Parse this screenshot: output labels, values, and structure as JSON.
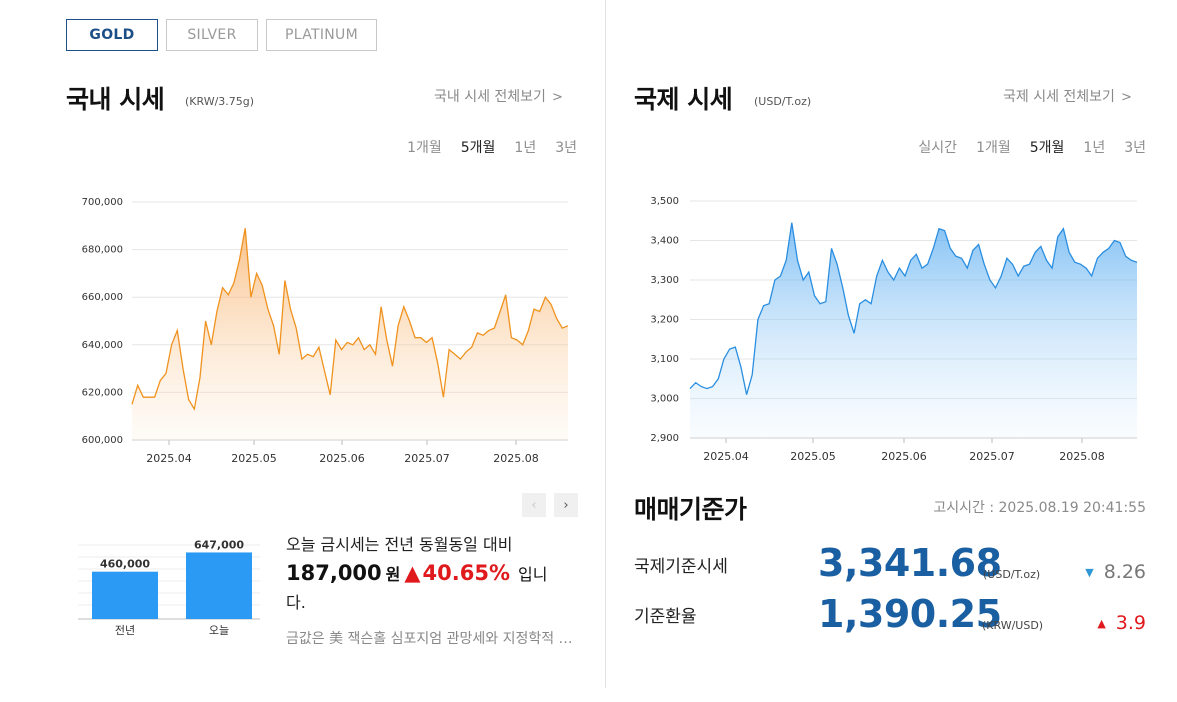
{
  "metal_tabs": [
    "GOLD",
    "SILVER",
    "PLATINUM"
  ],
  "domestic": {
    "title": "국내 시세",
    "unit": "(KRW/3.75g)",
    "view_all": "국내 시세 전체보기",
    "periods": [
      "1개월",
      "5개월",
      "1년",
      "3년"
    ],
    "selected_period": "5개월"
  },
  "international": {
    "title": "국제 시세",
    "unit": "(USD/T.oz)",
    "view_all": "국제 시세 전체보기",
    "periods": [
      "실시간",
      "1개월",
      "5개월",
      "1년",
      "3년"
    ],
    "selected_period": "5개월"
  },
  "colors": {
    "accent_blue": "#195fa1",
    "domestic_line": "#f0921e",
    "international_line": "#2a8ee0",
    "up_red": "#e0191c",
    "down_blue": "#2f97d6"
  },
  "chart_data": [
    {
      "type": "area",
      "name": "domestic",
      "x_ticks": [
        "2025.04",
        "2025.05",
        "2025.06",
        "2025.07",
        "2025.08"
      ],
      "y_ticks": [
        "700,000",
        "680,000",
        "660,000",
        "640,000",
        "620,000",
        "600,000"
      ],
      "ylim": [
        600000,
        700000
      ],
      "values": [
        615000,
        623000,
        618000,
        618000,
        618000,
        625000,
        628000,
        640000,
        646000,
        630000,
        617000,
        613000,
        626000,
        650000,
        640000,
        654000,
        664000,
        661000,
        666000,
        676000,
        689000,
        660000,
        670000,
        665000,
        655000,
        648000,
        636000,
        667000,
        655000,
        647000,
        634000,
        636000,
        635000,
        639000,
        629000,
        619000,
        642000,
        638000,
        641000,
        640000,
        643000,
        638000,
        640000,
        636000,
        656000,
        642000,
        631000,
        648000,
        656000,
        650000,
        643000,
        643000,
        641000,
        643000,
        632000,
        618000,
        638000,
        636000,
        634000,
        637000,
        639000,
        645000,
        644000,
        646000,
        647000,
        654000,
        661000,
        643000,
        642000,
        640000,
        646000,
        655000,
        654000,
        660000,
        657000,
        651000,
        647000,
        648000
      ],
      "grid": true
    },
    {
      "type": "area",
      "name": "international",
      "x_ticks": [
        "2025.04",
        "2025.05",
        "2025.06",
        "2025.07",
        "2025.08"
      ],
      "y_ticks": [
        "3,500",
        "3,400",
        "3,300",
        "3,200",
        "3,100",
        "3,000",
        "2,900"
      ],
      "ylim": [
        2900,
        3500
      ],
      "values": [
        3025,
        3040,
        3030,
        3025,
        3030,
        3050,
        3100,
        3125,
        3130,
        3080,
        3010,
        3060,
        3200,
        3235,
        3240,
        3300,
        3310,
        3350,
        3445,
        3350,
        3300,
        3320,
        3260,
        3240,
        3245,
        3380,
        3340,
        3280,
        3210,
        3165,
        3240,
        3250,
        3240,
        3310,
        3350,
        3320,
        3300,
        3330,
        3310,
        3350,
        3365,
        3330,
        3340,
        3380,
        3430,
        3425,
        3380,
        3360,
        3355,
        3330,
        3375,
        3390,
        3340,
        3300,
        3280,
        3310,
        3355,
        3340,
        3310,
        3335,
        3340,
        3370,
        3385,
        3350,
        3330,
        3410,
        3430,
        3370,
        3345,
        3340,
        3330,
        3310,
        3355,
        3370,
        3380,
        3400,
        3395,
        3360,
        3350,
        3345
      ],
      "grid": true
    },
    {
      "type": "bar",
      "name": "year_compare",
      "categories": [
        "전년",
        "오늘"
      ],
      "values": [
        460000,
        647000
      ],
      "data_labels": [
        "460,000",
        "647,000"
      ]
    }
  ],
  "compare": {
    "line1": "오늘 금시세는 전년 동월동일 대비",
    "amount": "187,000",
    "won": "원",
    "arrow": "▲",
    "percent": "40.65%",
    "tail": "입니",
    "line3": "다.",
    "news": "금값은 美 잭슨홀 심포지엄 관망세와 지정학적 리스크 속 보합세"
  },
  "pager": {
    "prev": "‹",
    "next": "›"
  },
  "base_price": {
    "title": "매매기준가",
    "notice": "고시시간 : 2025.08.19 20:41:55",
    "rows": [
      {
        "label": "국제기준시세",
        "value": "3,341.68",
        "unit": "(USD/T.oz)",
        "arrow": "▼",
        "change": "8.26"
      },
      {
        "label": "기준환율",
        "value": "1,390.25",
        "unit": "(KRW/USD)",
        "arrow": "▲",
        "change": "3.9"
      }
    ]
  }
}
